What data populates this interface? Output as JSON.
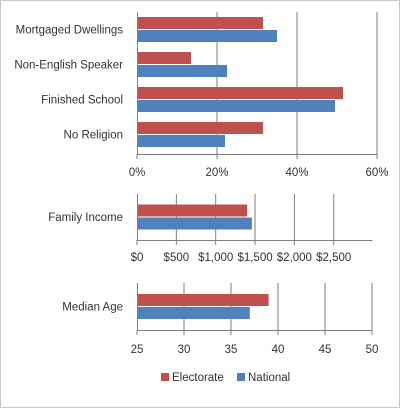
{
  "chart_data": [
    {
      "type": "bar",
      "orientation": "horizontal",
      "unit": "percent",
      "categories": [
        "Mortgaged Dwellings",
        "Non-English Speaker",
        "Finished School",
        "No Religion"
      ],
      "series": [
        {
          "name": "Electorate",
          "values": [
            31.5,
            13.5,
            51.5,
            31.5
          ]
        },
        {
          "name": "National",
          "values": [
            35,
            22.5,
            49.5,
            22
          ]
        }
      ],
      "xlim": [
        0,
        60
      ],
      "ticks": [
        0,
        20,
        40,
        60
      ],
      "tick_labels": [
        "0%",
        "20%",
        "40%",
        "60%"
      ],
      "grid": true
    },
    {
      "type": "bar",
      "orientation": "horizontal",
      "unit": "dollars",
      "categories": [
        "Family Income"
      ],
      "series": [
        {
          "name": "Electorate",
          "values": [
            1400
          ]
        },
        {
          "name": "National",
          "values": [
            1460
          ]
        }
      ],
      "xlim": [
        0,
        2750
      ],
      "ticks": [
        0,
        500,
        1000,
        1500,
        2000,
        2500
      ],
      "tick_labels": [
        "$0",
        "$500",
        "$1,000",
        "$1,500",
        "$2,000",
        "$2,500"
      ],
      "grid": true
    },
    {
      "type": "bar",
      "orientation": "horizontal",
      "unit": "years",
      "categories": [
        "Median Age"
      ],
      "series": [
        {
          "name": "Electorate",
          "values": [
            39
          ]
        },
        {
          "name": "National",
          "values": [
            37
          ]
        }
      ],
      "xlim": [
        25,
        50
      ],
      "ticks": [
        25,
        30,
        35,
        40,
        45,
        50
      ],
      "tick_labels": [
        "25",
        "30",
        "35",
        "40",
        "45",
        "50"
      ],
      "grid": true
    }
  ],
  "legend": {
    "position": "bottom",
    "items": [
      {
        "name": "Electorate",
        "color": "#c0504d"
      },
      {
        "name": "National",
        "color": "#4f81bd"
      }
    ]
  },
  "colors": {
    "electorate": "#c0504d",
    "national": "#4f81bd",
    "grid": "#7f7f7f",
    "axis": "#7f7f7f"
  }
}
